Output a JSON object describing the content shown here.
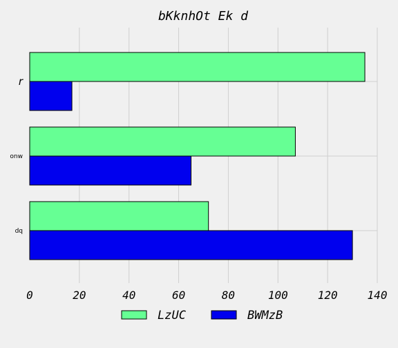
{
  "chart_data": {
    "type": "bar",
    "orientation": "horizontal",
    "title": "bKknhOt Ek d",
    "categories": [
      "r",
      "onw",
      "dq"
    ],
    "series": [
      {
        "name": "LzUC",
        "values": [
          135,
          107,
          72
        ],
        "color": "#66ff94"
      },
      {
        "name": "BWMzB",
        "values": [
          17,
          65,
          130
        ],
        "color": "#0000ee"
      }
    ],
    "xlim": [
      0,
      140
    ],
    "xticks": [
      "0",
      "20",
      "40",
      "60",
      "80",
      "100",
      "120",
      "140"
    ],
    "xlabel": "",
    "ylabel": "",
    "grid": true,
    "legend_position": "bottom"
  }
}
